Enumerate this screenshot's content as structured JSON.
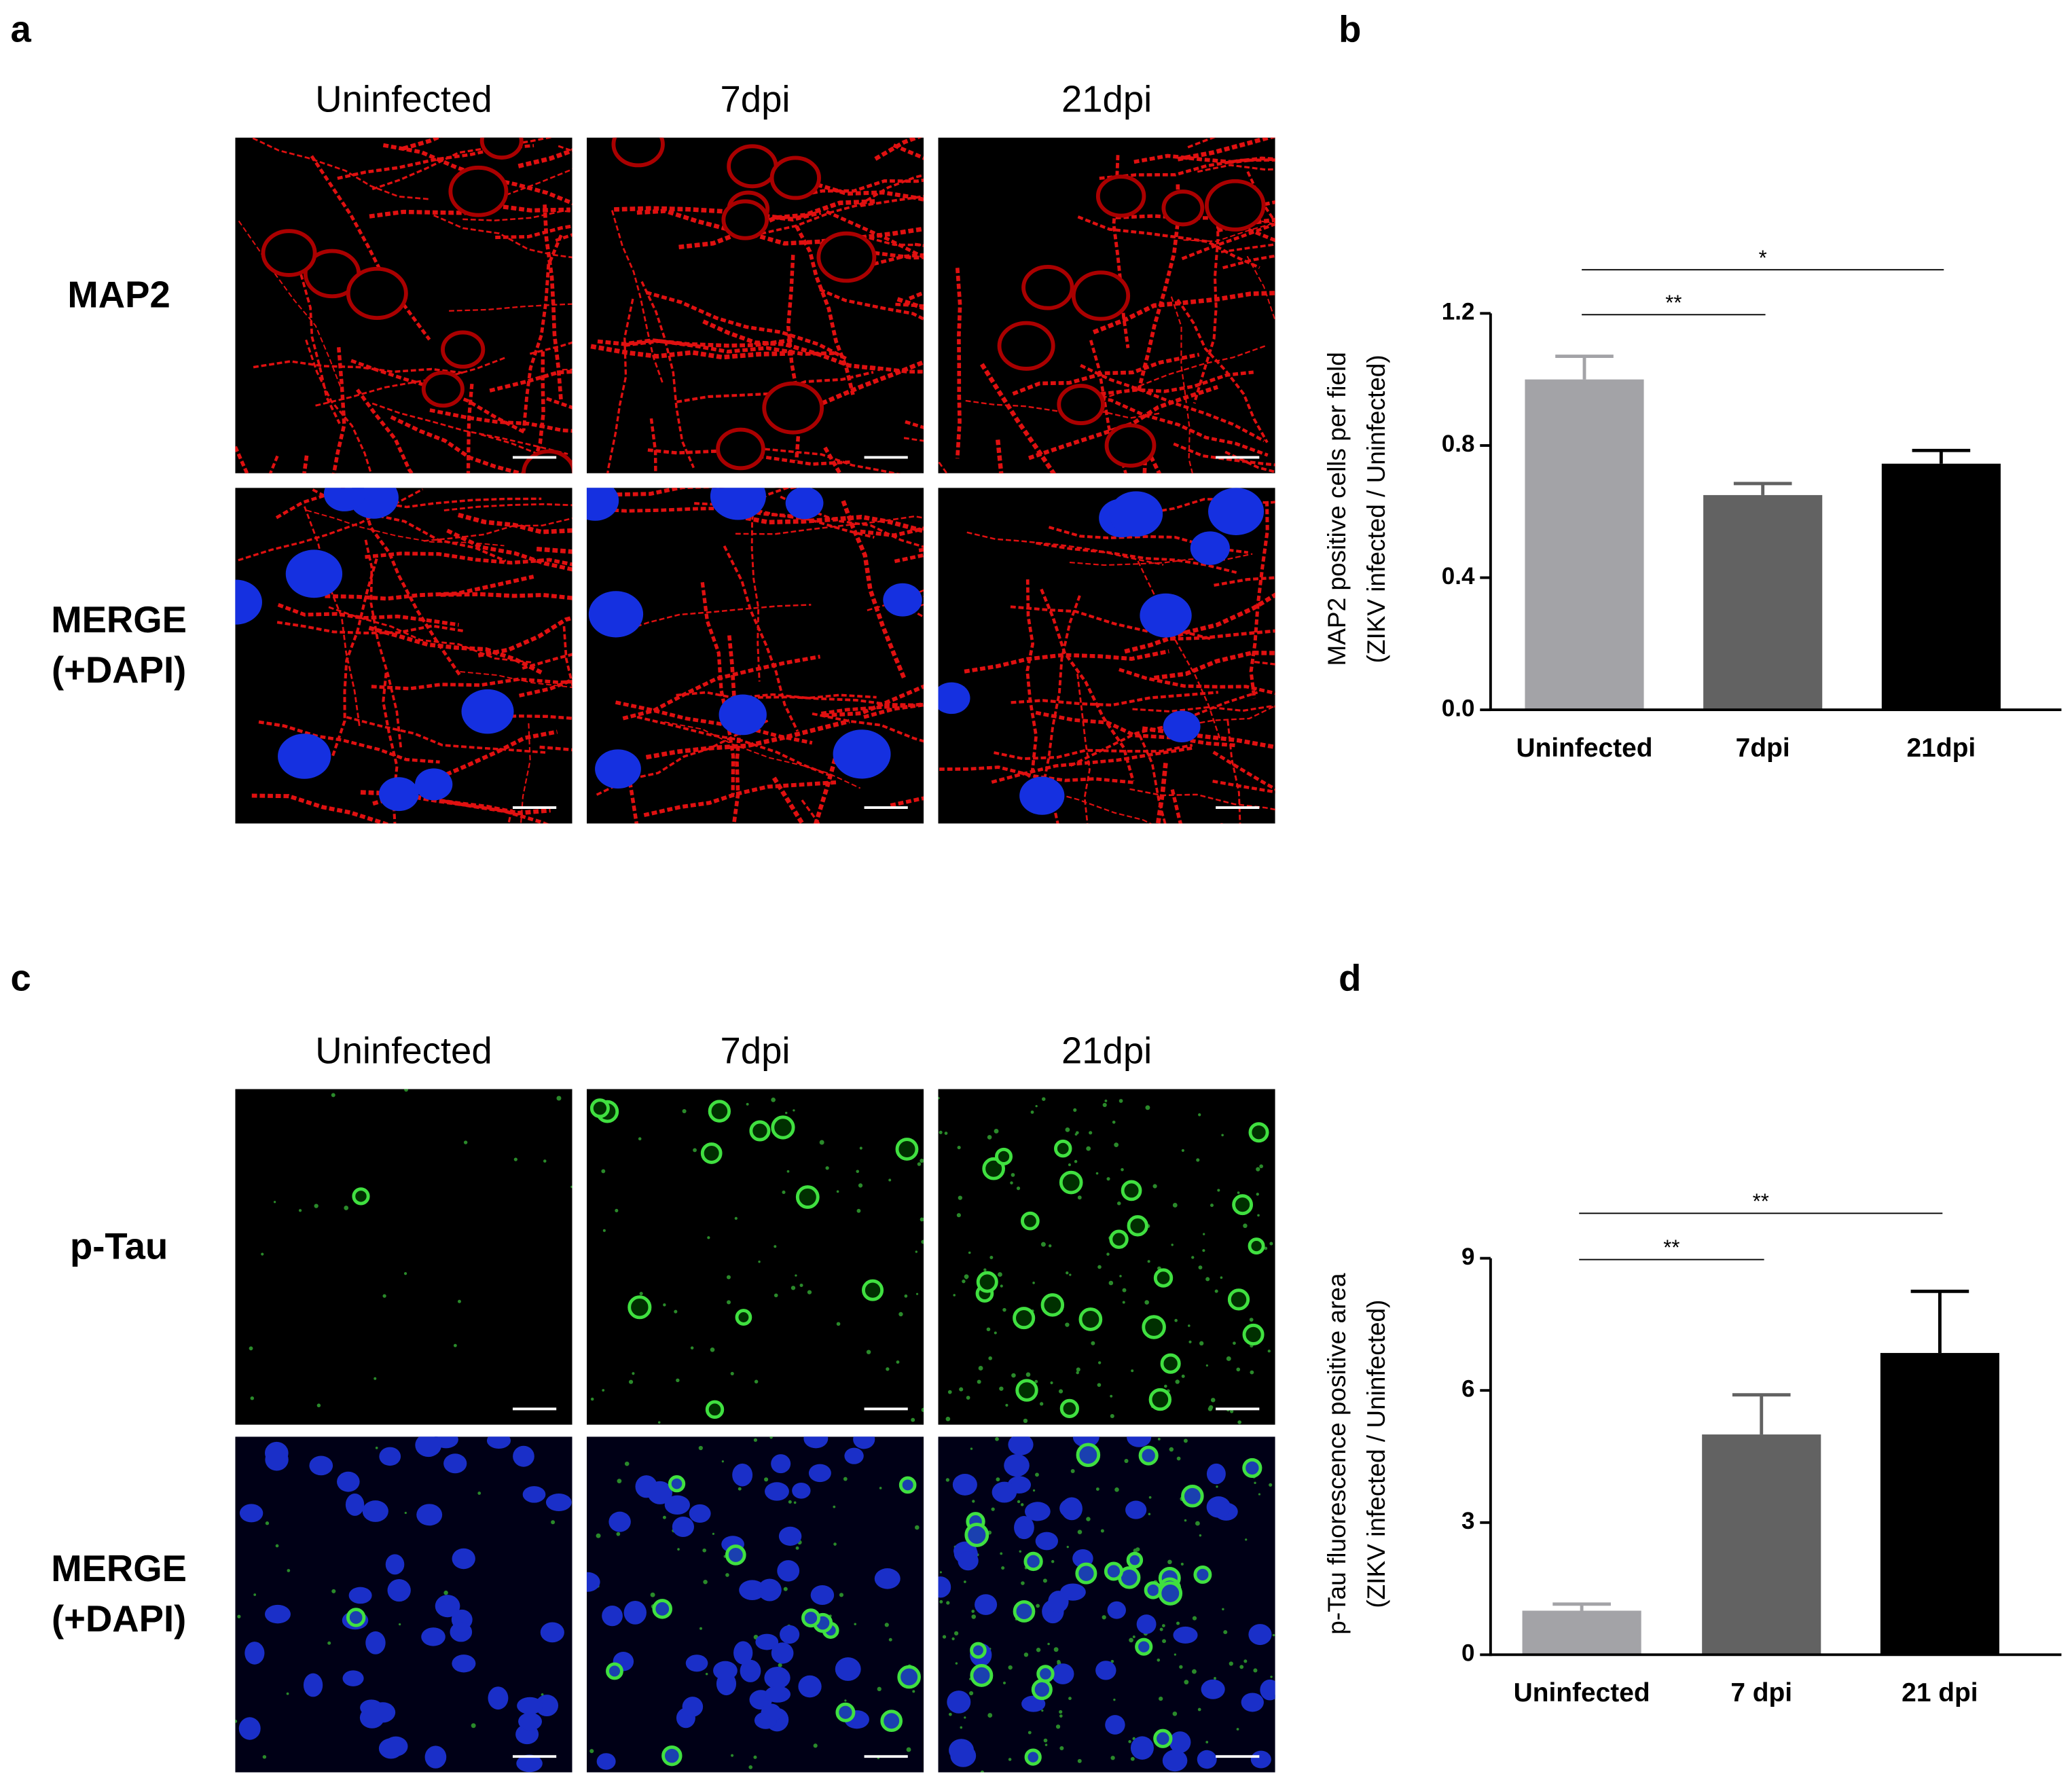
{
  "figure": {
    "panel_letters": [
      "a",
      "b",
      "c",
      "d"
    ],
    "image_panels": [
      {
        "columns": [
          "Uninfected",
          "7dpi",
          "21dpi"
        ],
        "rows": [
          [
            "MAP2"
          ],
          [
            "MERGE",
            "(+DAPI)"
          ]
        ]
      },
      {
        "columns": [
          "Uninfected",
          "7dpi",
          "21dpi"
        ],
        "rows": [
          [
            "p-Tau"
          ],
          [
            "MERGE",
            "(+DAPI)"
          ]
        ]
      }
    ]
  },
  "chart_data": [
    {
      "type": "bar",
      "y_label": [
        "MAP2 positive cells per field",
        "(ZIKV infected / Uninfected)"
      ],
      "categories": [
        "Uninfected",
        "7dpi",
        "21dpi"
      ],
      "values": [
        1.0,
        0.65,
        0.745
      ],
      "errors": [
        0.07,
        0.035,
        0.04
      ],
      "colors": [
        "#a3a3a7",
        "#626262",
        "#000000"
      ],
      "ylim": [
        0,
        1.2
      ],
      "yticks": [
        {
          "value": 0,
          "label": "0.0"
        },
        0.4,
        0.8,
        1.2
      ],
      "annotations": [
        {
          "label": "**",
          "between": [
            "Uninfected",
            "7dpi"
          ]
        },
        {
          "label": "*",
          "between": [
            "Uninfected",
            "21dpi"
          ]
        }
      ]
    },
    {
      "type": "bar",
      "y_label": [
        "p-Tau fluorescence positive area",
        "(ZIKV infected / Uninfected)"
      ],
      "categories": [
        "Uninfected",
        "7 dpi",
        "21 dpi"
      ],
      "values": [
        1.0,
        5.0,
        6.85
      ],
      "errors": [
        0.15,
        0.9,
        1.4
      ],
      "colors": [
        "#a3a3a7",
        "#626262",
        "#000000"
      ],
      "ylim": [
        0,
        9
      ],
      "yticks": [
        0,
        3,
        6,
        9
      ],
      "annotations": [
        {
          "label": "**",
          "between": [
            "Uninfected",
            "7 dpi"
          ]
        },
        {
          "label": "**",
          "between": [
            "Uninfected",
            "21 dpi"
          ]
        }
      ]
    }
  ]
}
